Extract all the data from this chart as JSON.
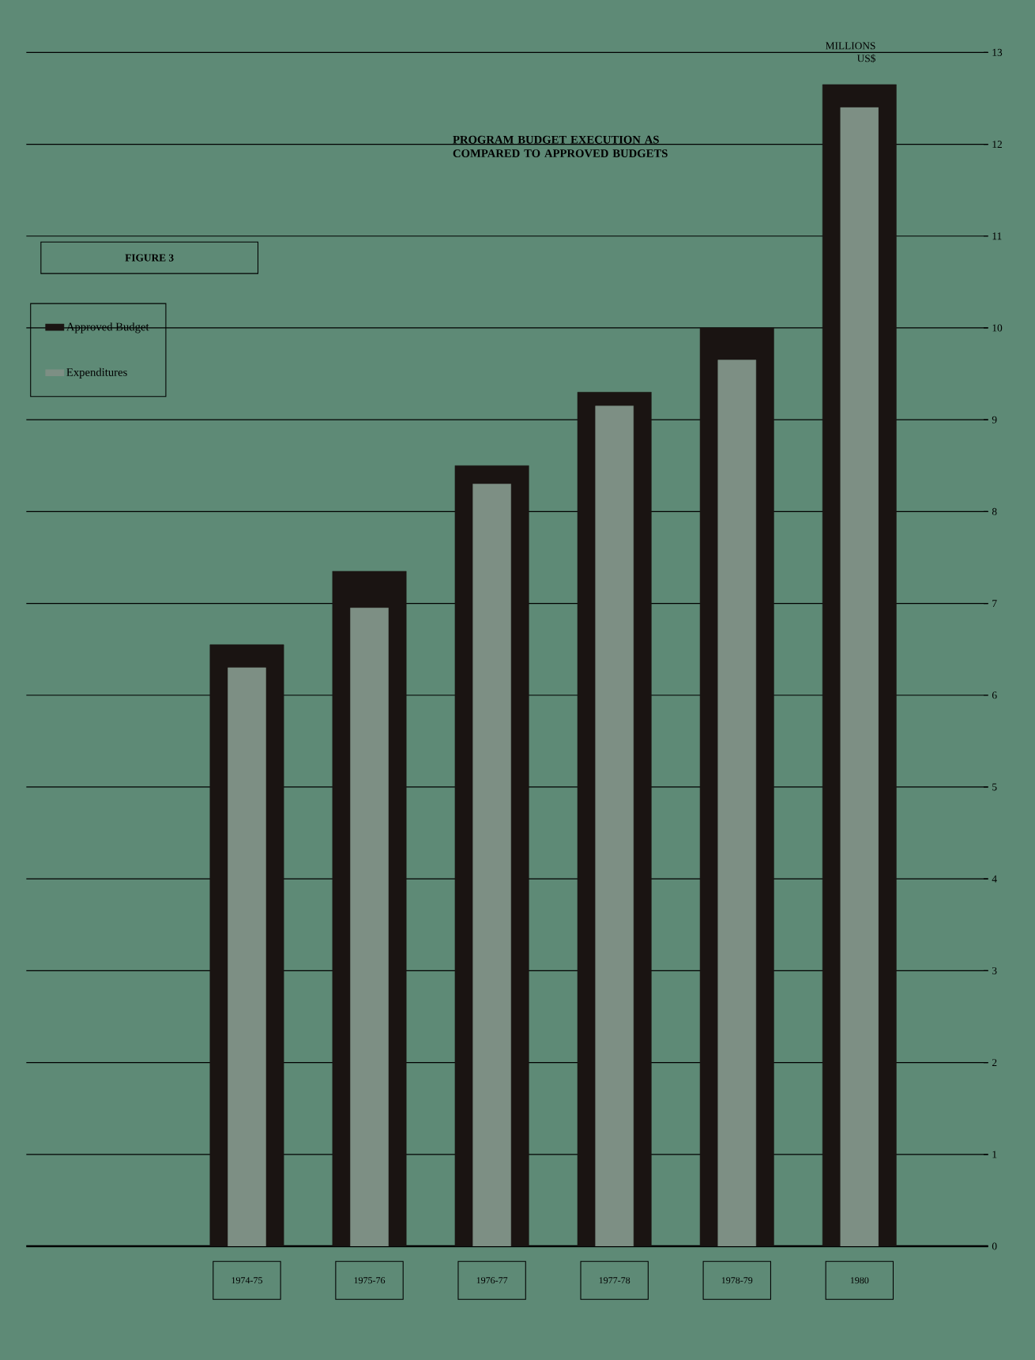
{
  "chart_data": {
    "type": "bar",
    "title": "PROGRAM BUDGET EXECUTION AS COMPARED TO APPROVED BUDGETS",
    "ylabel": "MILLIONS US$",
    "annotations": [
      "FIGURE 3"
    ],
    "categories": [
      "1974-75",
      "1975-76",
      "1976-77",
      "1977-78",
      "1978-79",
      "1980"
    ],
    "series": [
      {
        "name": "Approved Budget",
        "color": "#1a1412",
        "values": [
          6.55,
          7.35,
          8.5,
          9.3,
          10.0,
          12.65
        ]
      },
      {
        "name": "Expenditures",
        "color": "#7d8f84",
        "values": [
          6.3,
          6.95,
          8.3,
          9.15,
          9.65,
          12.4
        ]
      }
    ],
    "ylim": [
      0,
      13
    ],
    "yticks": [
      0,
      1,
      2,
      3,
      4,
      5,
      6,
      7,
      8,
      9,
      10,
      11,
      12,
      13
    ],
    "grid": "y",
    "legend": "top left"
  }
}
